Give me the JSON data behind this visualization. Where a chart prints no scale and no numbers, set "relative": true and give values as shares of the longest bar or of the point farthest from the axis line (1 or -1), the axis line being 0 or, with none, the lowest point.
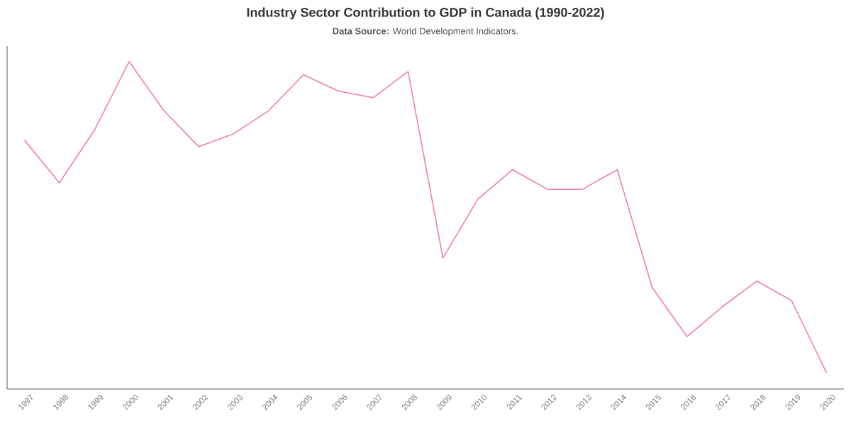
{
  "chart_data": {
    "type": "line",
    "title": "Industry Sector Contribution to GDP in Canada (1990-2022)",
    "subtitle": "**Data Source:** World Development Indicators.",
    "categories": [
      "1997",
      "1998",
      "1999",
      "2000",
      "2001",
      "2002",
      "2003",
      "2004",
      "2005",
      "2006",
      "2007",
      "2008",
      "2009",
      "2010",
      "2011",
      "2012",
      "2013",
      "2014",
      "2015",
      "2016",
      "2017",
      "2018",
      "2019",
      "2020"
    ],
    "values": [
      0.76,
      0.63,
      0.79,
      1.0,
      0.85,
      0.74,
      0.78,
      0.85,
      0.96,
      0.91,
      0.89,
      0.97,
      0.4,
      0.58,
      0.67,
      0.61,
      0.61,
      0.67,
      0.31,
      0.16,
      0.25,
      0.33,
      0.27,
      0.05
    ],
    "color": "#f07fa8",
    "relative": true,
    "tick_labels": "x",
    "line_style": "solid"
  }
}
